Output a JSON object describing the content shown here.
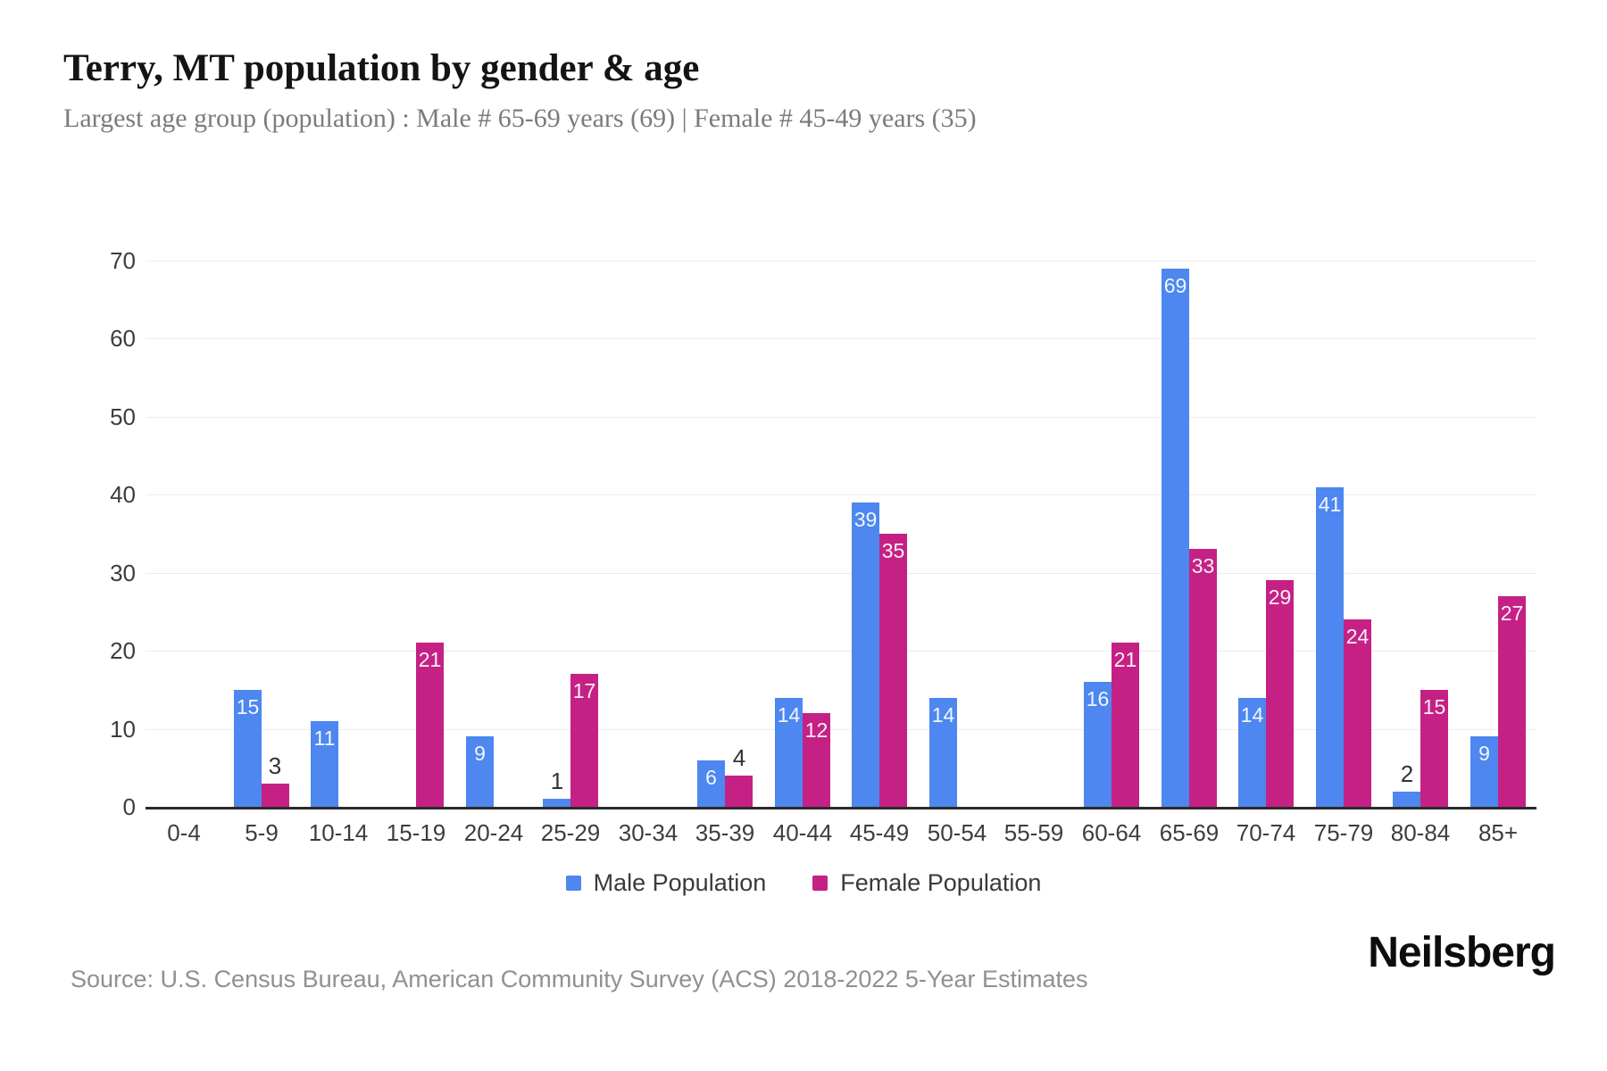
{
  "header": {
    "title": "Terry, MT population by gender & age",
    "subtitle": "Largest age group (population) : Male # 65-69 years (69) | Female # 45-49 years (35)"
  },
  "chart_data": {
    "type": "bar",
    "title": "Terry, MT population by gender & age",
    "categories": [
      "0-4",
      "5-9",
      "10-14",
      "15-19",
      "20-24",
      "25-29",
      "30-34",
      "35-39",
      "40-44",
      "45-49",
      "50-54",
      "55-59",
      "60-64",
      "65-69",
      "70-74",
      "75-79",
      "80-84",
      "85+"
    ],
    "series": [
      {
        "name": "Male Population",
        "color": "#4d87ef",
        "values": [
          0,
          15,
          11,
          0,
          9,
          1,
          0,
          6,
          14,
          39,
          14,
          0,
          16,
          69,
          14,
          41,
          2,
          9
        ]
      },
      {
        "name": "Female Population",
        "color": "#c52185",
        "values": [
          0,
          3,
          0,
          21,
          0,
          17,
          0,
          4,
          12,
          35,
          0,
          0,
          21,
          33,
          29,
          24,
          15,
          27
        ]
      }
    ],
    "xlabel": "",
    "ylabel": "",
    "ylim": [
      0,
      70
    ],
    "yticks": [
      0,
      10,
      20,
      30,
      40,
      50,
      60,
      70
    ],
    "grid": true,
    "legend_position": "bottom",
    "value_label_colors": {
      "inside": "#ffffff",
      "outside": "#333333"
    }
  },
  "footer": {
    "source": "Source: U.S. Census Bureau, American Community Survey (ACS) 2018-2022 5-Year Estimates",
    "brand": "Neilsberg"
  }
}
